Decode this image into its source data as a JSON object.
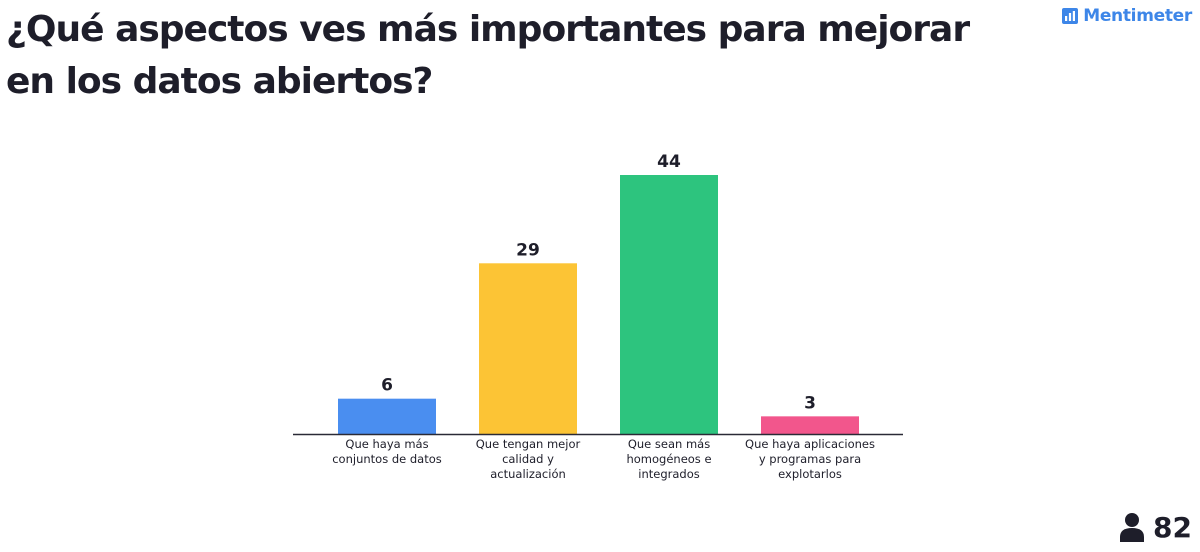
{
  "question": "¿Qué aspectos ves más importantes para mejorar en los datos abiertos?",
  "brand": {
    "name": "Mentimeter",
    "icon": "bar-chart-icon",
    "color": "#3d86e8"
  },
  "participants": {
    "icon": "person-icon",
    "count": "82"
  },
  "chart_data": {
    "type": "bar",
    "categories": [
      "Que haya más conjuntos de datos",
      "Que tengan mejor calidad y actualización",
      "Que sean más homogéneos e integrados",
      "Que haya aplicaciones y programas para explotarlos"
    ],
    "values": [
      6,
      29,
      44,
      3
    ],
    "colors": [
      "#4a8ef0",
      "#fcc435",
      "#2dc47e",
      "#f2568c"
    ],
    "title": "",
    "xlabel": "",
    "ylabel": "",
    "ylim": [
      0,
      44
    ],
    "grid": false,
    "legend": "none"
  }
}
